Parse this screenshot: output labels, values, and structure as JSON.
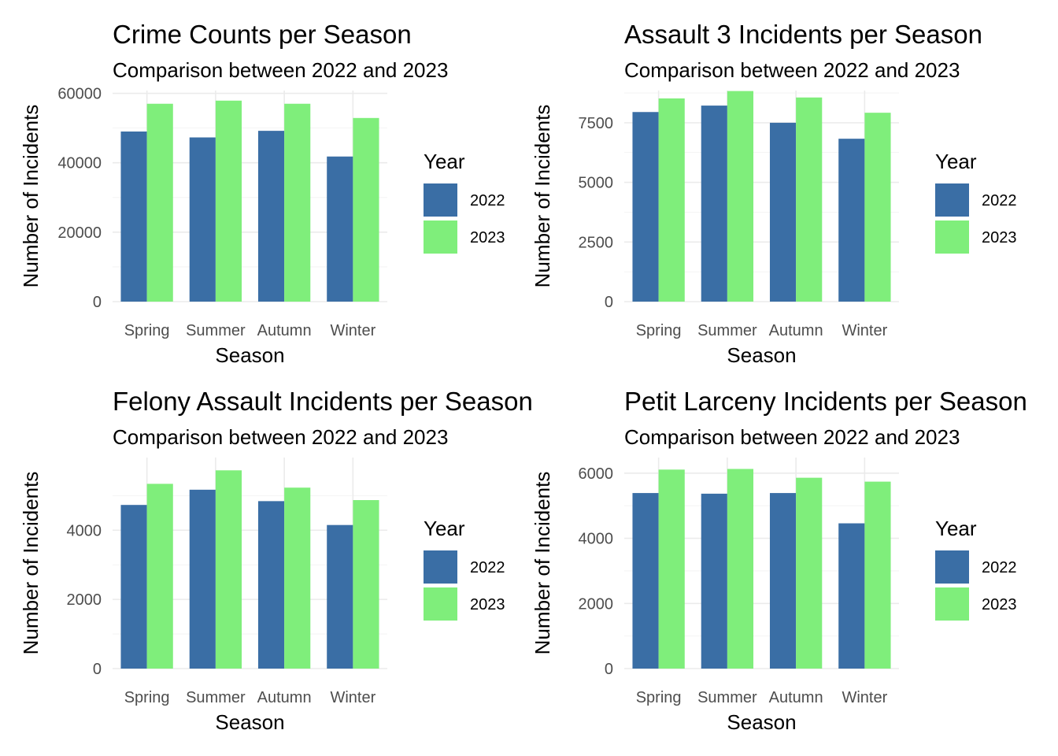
{
  "chart_data": [
    {
      "type": "bar",
      "title": "Crime Counts per Season",
      "subtitle": "Comparison between 2022 and 2023",
      "xlabel": "Season",
      "ylabel": "Number of Incidents",
      "categories": [
        "Spring",
        "Summer",
        "Autumn",
        "Winter"
      ],
      "series": [
        {
          "name": "2022",
          "values": [
            49000,
            47300,
            49200,
            41800
          ]
        },
        {
          "name": "2023",
          "values": [
            57000,
            57900,
            57000,
            52900
          ]
        }
      ],
      "yticks": [
        0,
        20000,
        40000,
        60000
      ],
      "yticklabels": [
        "0",
        "20000",
        "40000",
        "60000"
      ],
      "ylim": [
        0,
        60800
      ],
      "legend": {
        "title": "Year",
        "position": "right"
      },
      "grid": true
    },
    {
      "type": "bar",
      "title": "Assault 3 Incidents per Season",
      "subtitle": "Comparison between 2022 and 2023",
      "xlabel": "Season",
      "ylabel": "Number of Incidents",
      "categories": [
        "Spring",
        "Summer",
        "Autumn",
        "Winter"
      ],
      "series": [
        {
          "name": "2022",
          "values": [
            7950,
            8220,
            7500,
            6830
          ]
        },
        {
          "name": "2023",
          "values": [
            8520,
            8830,
            8560,
            7920
          ]
        }
      ],
      "yticks": [
        0,
        2500,
        5000,
        7500
      ],
      "yticklabels": [
        "0",
        "2500",
        "5000",
        "7500"
      ],
      "ylim": [
        0,
        8850
      ],
      "legend": {
        "title": "Year",
        "position": "right"
      },
      "grid": true
    },
    {
      "type": "bar",
      "title": "Felony Assault Incidents per Season",
      "subtitle": "Comparison between 2022 and 2023",
      "xlabel": "Season",
      "ylabel": "Number of Incidents",
      "categories": [
        "Spring",
        "Summer",
        "Autumn",
        "Winter"
      ],
      "series": [
        {
          "name": "2022",
          "values": [
            4730,
            5170,
            4840,
            4150
          ]
        },
        {
          "name": "2023",
          "values": [
            5340,
            5730,
            5230,
            4870
          ]
        }
      ],
      "yticks": [
        0,
        2000,
        4000
      ],
      "yticklabels": [
        "0",
        "2000",
        "4000"
      ],
      "ylim": [
        0,
        6100
      ],
      "legend": {
        "title": "Year",
        "position": "right"
      },
      "grid": true
    },
    {
      "type": "bar",
      "title": "Petit Larceny Incidents per Season",
      "subtitle": "Comparison between 2022 and 2023",
      "xlabel": "Season",
      "ylabel": "Number of Incidents",
      "categories": [
        "Spring",
        "Summer",
        "Autumn",
        "Winter"
      ],
      "series": [
        {
          "name": "2022",
          "values": [
            5390,
            5370,
            5390,
            4460
          ]
        },
        {
          "name": "2023",
          "values": [
            6110,
            6130,
            5860,
            5740
          ]
        }
      ],
      "yticks": [
        0,
        2000,
        4000,
        6000
      ],
      "yticklabels": [
        "0",
        "2000",
        "4000",
        "6000"
      ],
      "ylim": [
        0,
        6480
      ],
      "legend": {
        "title": "Year",
        "position": "right"
      },
      "grid": true
    }
  ],
  "colors": {
    "2022": "#3a6ea5",
    "2023": "#7fee7b"
  }
}
